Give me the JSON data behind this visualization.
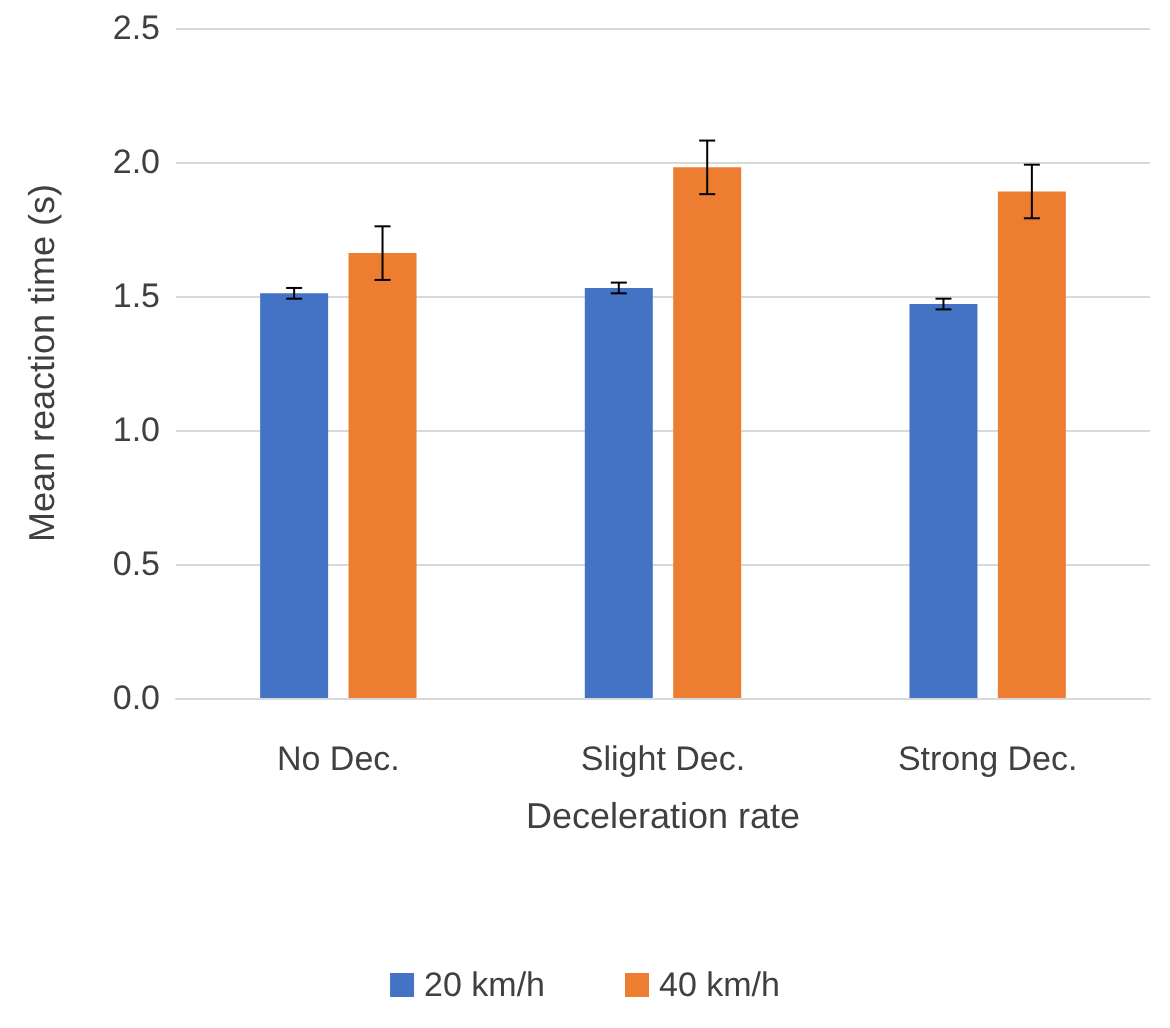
{
  "chart_data": {
    "type": "bar",
    "xlabel": "Deceleration rate",
    "ylabel": "Mean reaction time (s)",
    "categories": [
      "No Dec.",
      "Slight Dec.",
      "Strong Dec."
    ],
    "series": [
      {
        "name": "20 km/h",
        "color": "#4472c4",
        "values": [
          1.51,
          1.53,
          1.47
        ],
        "errors": [
          0.02,
          0.02,
          0.02
        ]
      },
      {
        "name": "40 km/h",
        "color": "#ed7d31",
        "values": [
          1.66,
          1.98,
          1.89
        ],
        "errors": [
          0.1,
          0.1,
          0.1
        ]
      }
    ],
    "ylim": [
      0,
      2.5
    ],
    "yticks": [
      {
        "value": 0,
        "label": "0.0"
      },
      0.5,
      {
        "value": 1,
        "label": "1.0"
      },
      1.5,
      {
        "value": 2,
        "label": "2.0"
      },
      2.5
    ],
    "grid": "y",
    "legend": "bottom"
  }
}
